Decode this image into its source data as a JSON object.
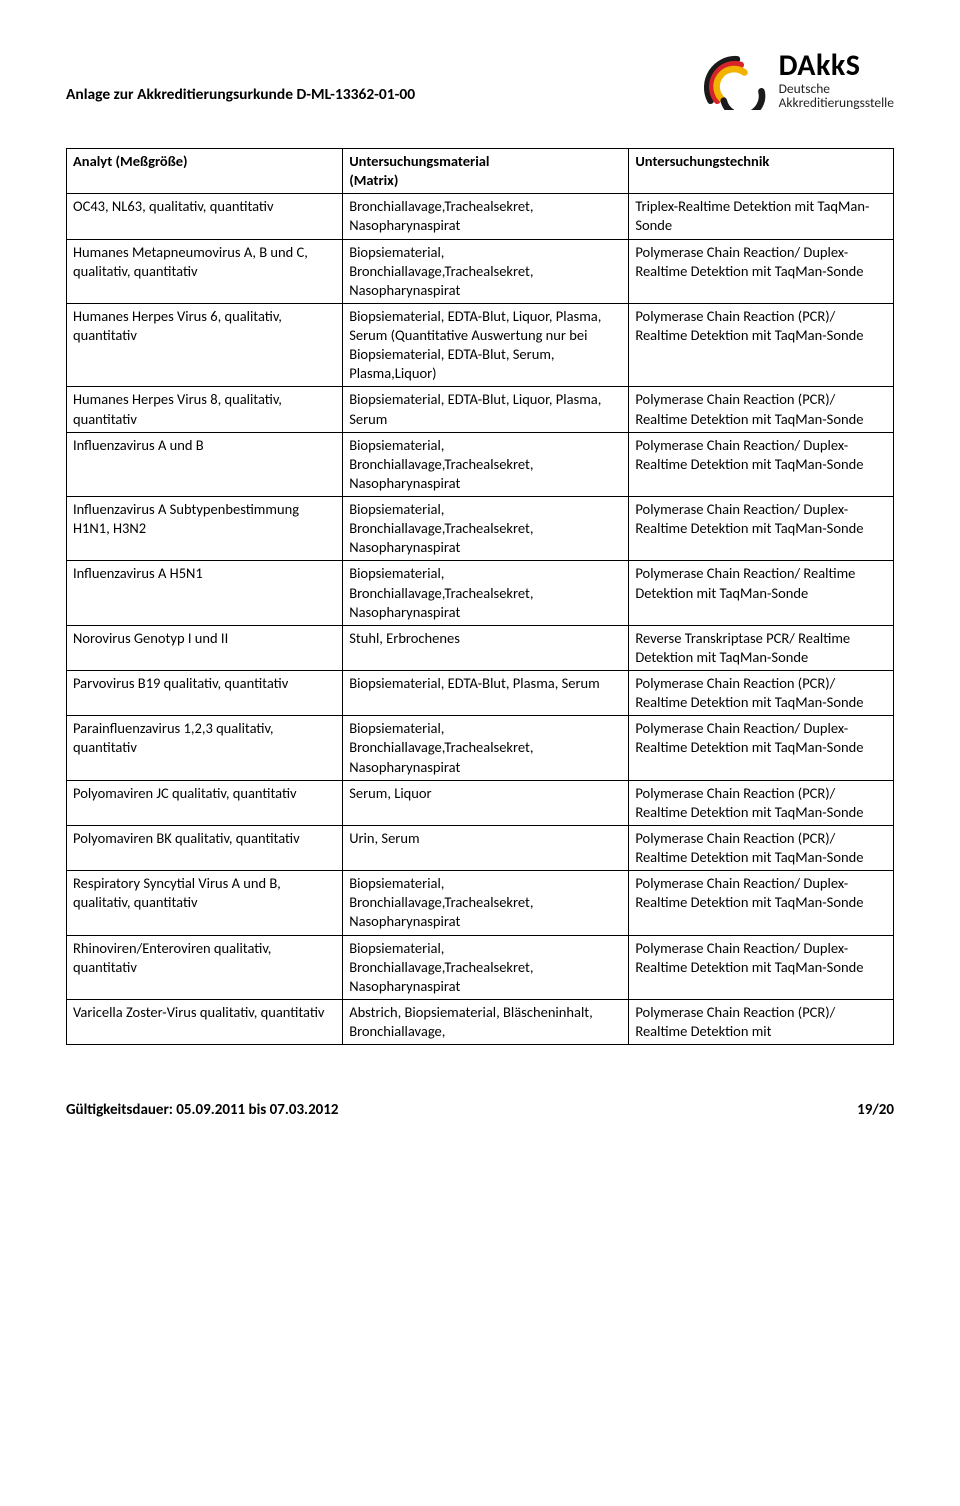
{
  "header": {
    "title": "Anlage zur Akkreditierungsurkunde D-ML-13362-01-00",
    "logo_main": "DAkkS",
    "logo_sub1": "Deutsche",
    "logo_sub2": "Akkreditierungsstelle"
  },
  "table": {
    "headers": {
      "col1": "Analyt (Meßgröße)",
      "col2a": "Untersuchungsmaterial",
      "col2b": "(Matrix)",
      "col3": "Untersuchungstechnik"
    },
    "rows": [
      {
        "c1": "OC43, NL63, qualitativ, quantitativ",
        "c2": "Bronchiallavage,Trachealsekret, Nasopharynaspirat",
        "c3": "Triplex-Realtime Detektion mit TaqMan-Sonde"
      },
      {
        "c1": "Humanes Metapneumovirus A, B und C, qualitativ, quantitativ",
        "c2": "Biopsiematerial, Bronchiallavage,Trachealsekret, Nasopharynaspirat",
        "c3": "Polymerase Chain Reaction/ Duplex-Realtime Detektion mit TaqMan-Sonde"
      },
      {
        "c1": "Humanes Herpes Virus 6, qualitativ, quantitativ",
        "c2": "Biopsiematerial, EDTA-Blut, Liquor, Plasma, Serum (Quantitative Auswertung nur bei Biopsiematerial, EDTA-Blut, Serum, Plasma,Liquor)",
        "c3": "Polymerase Chain Reaction (PCR)/ Realtime Detektion mit TaqMan-Sonde"
      },
      {
        "c1": "Humanes Herpes Virus 8, qualitativ, quantitativ",
        "c2": "Biopsiematerial, EDTA-Blut, Liquor, Plasma, Serum",
        "c3": "Polymerase Chain Reaction (PCR)/ Realtime Detektion mit TaqMan-Sonde"
      },
      {
        "c1": "Influenzavirus A und B",
        "c2": "Biopsiematerial, Bronchiallavage,Trachealsekret, Nasopharynaspirat",
        "c3": "Polymerase Chain Reaction/ Duplex-Realtime Detektion mit TaqMan-Sonde"
      },
      {
        "c1": "Influenzavirus A Subtypenbestimmung H1N1, H3N2",
        "c2": "Biopsiematerial, Bronchiallavage,Trachealsekret, Nasopharynaspirat",
        "c3": "Polymerase Chain Reaction/ Duplex-Realtime Detektion mit TaqMan-Sonde"
      },
      {
        "c1": "Influenzavirus A  H5N1",
        "c2": "Biopsiematerial, Bronchiallavage,Trachealsekret, Nasopharynaspirat",
        "c3": "Polymerase Chain Reaction/ Realtime Detektion mit TaqMan-Sonde"
      },
      {
        "c1": "Norovirus Genotyp I und II",
        "c2": "Stuhl, Erbrochenes",
        "c3": "Reverse Transkriptase PCR/ Realtime Detektion mit TaqMan-Sonde"
      },
      {
        "c1": "Parvovirus B19 qualitativ, quantitativ",
        "c2": "Biopsiematerial, EDTA-Blut, Plasma, Serum",
        "c3": "Polymerase Chain Reaction (PCR)/ Realtime Detektion mit TaqMan-Sonde"
      },
      {
        "c1": "Parainfluenzavirus 1,2,3 qualitativ, quantitativ",
        "c2": "Biopsiematerial, Bronchiallavage,Trachealsekret, Nasopharynaspirat",
        "c3": "Polymerase Chain Reaction/ Duplex-Realtime Detektion mit TaqMan-Sonde"
      },
      {
        "c1": "Polyomaviren JC qualitativ, quantitativ",
        "c2": "Serum, Liquor",
        "c3": "Polymerase Chain Reaction (PCR)/ Realtime Detektion mit TaqMan-Sonde"
      },
      {
        "c1": "Polyomaviren BK qualitativ, quantitativ",
        "c2": "Urin, Serum",
        "c3": "Polymerase Chain Reaction (PCR)/ Realtime Detektion mit TaqMan-Sonde"
      },
      {
        "c1": "Respiratory Syncytial Virus  A und B, qualitativ, quantitativ",
        "c2": "Biopsiematerial, Bronchiallavage,Trachealsekret, Nasopharynaspirat",
        "c3": "Polymerase Chain Reaction/ Duplex-Realtime Detektion mit TaqMan-Sonde"
      },
      {
        "c1": "Rhinoviren/Enteroviren qualitativ, quantitativ",
        "c2": "Biopsiematerial, Bronchiallavage,Trachealsekret, Nasopharynaspirat",
        "c3": "Polymerase Chain Reaction/ Duplex-Realtime Detektion mit TaqMan-Sonde"
      },
      {
        "c1": "Varicella Zoster-Virus qualitativ, quantitativ",
        "c2": "Abstrich, Biopsiematerial, Bläscheninhalt, Bronchiallavage,",
        "c3": "Polymerase Chain Reaction (PCR)/ Realtime Detektion mit"
      }
    ]
  },
  "footer": {
    "validity": "Gültigkeitsdauer: 05.09.2011 bis 07.03.2012",
    "page": "19/20"
  },
  "logo_colors": {
    "arc1": "#1a1a1a",
    "arc2": "#d8232a",
    "arc3": "#f2b200"
  }
}
